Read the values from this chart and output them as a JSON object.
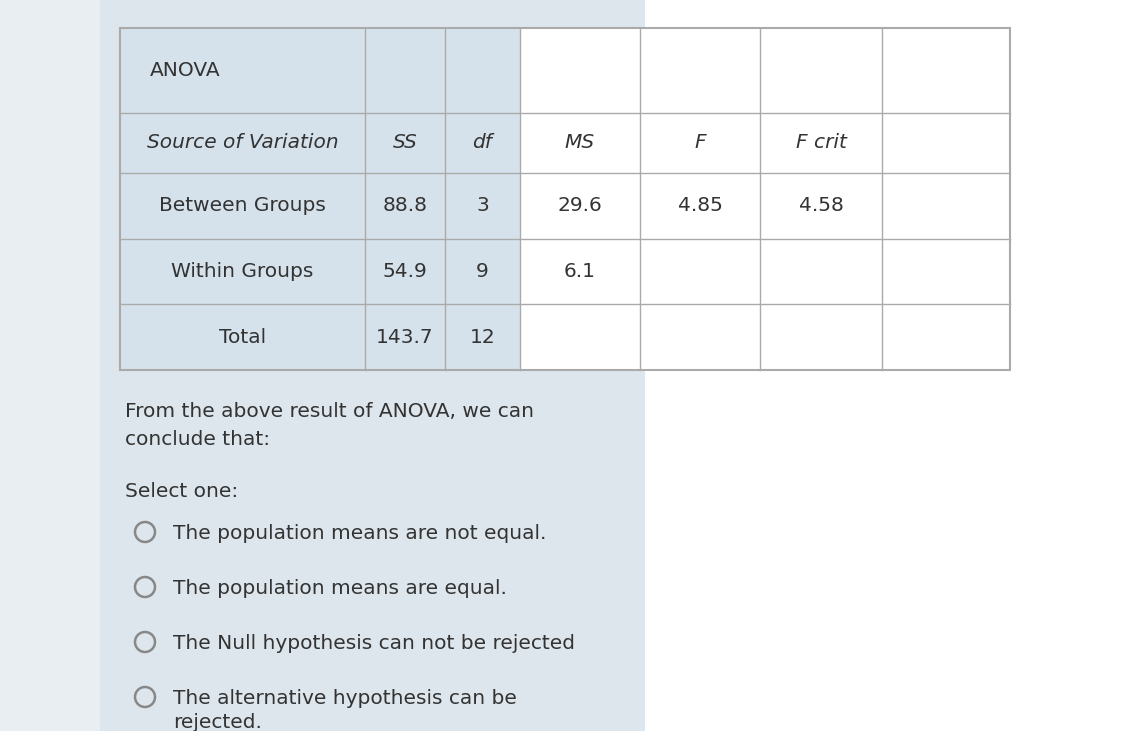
{
  "page_bg": "#e8eef2",
  "left_panel_bg": "#dde6ed",
  "table_col_left_bg": "#d5e2eb",
  "table_col_right_bg": "#ffffff",
  "border_color": "#aaaaaa",
  "text_color": "#333333",
  "title": "ANOVA",
  "headers": [
    "Source of Variation",
    "SS",
    "df",
    "MS",
    "F",
    "F crit"
  ],
  "rows": [
    [
      "Between Groups",
      "88.8",
      "3",
      "29.6",
      "4.85",
      "4.58"
    ],
    [
      "Within Groups",
      "54.9",
      "9",
      "6.1",
      "",
      ""
    ],
    [
      "Total",
      "143.7",
      "12",
      "",
      "",
      ""
    ]
  ],
  "conclusion_text1": "From the above result of ANOVA, we can",
  "conclusion_text2": "conclude that:",
  "select_label": "Select one:",
  "options": [
    "The population means are not equal.",
    "The population means are equal.",
    "The Null hypothesis can not be rejected",
    [
      "The alternative hypothesis can be",
      "rejected."
    ]
  ],
  "font_size_table": 14.5,
  "font_size_text": 14.5,
  "circle_color": "#888888",
  "right_panel_bg": "#f0f0f0"
}
